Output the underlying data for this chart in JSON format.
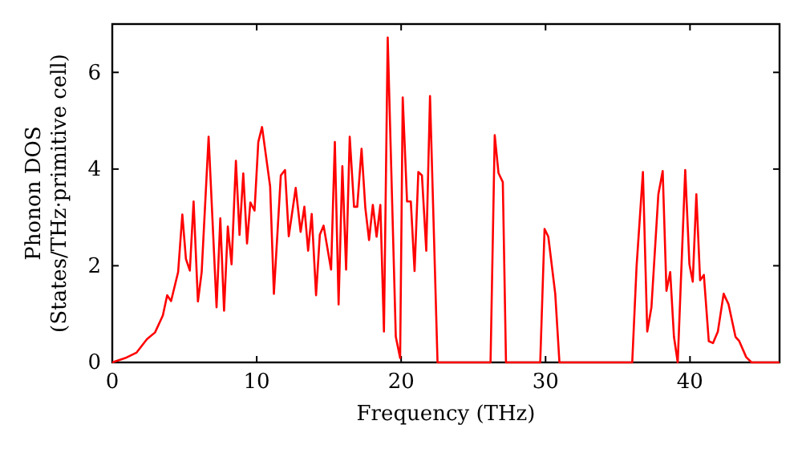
{
  "chart_data": {
    "type": "line",
    "xlabel": "Frequency (THz)",
    "ylabel": "Phonon DOS\n(States/THz·primitive cell)",
    "xlim": [
      0,
      46.2
    ],
    "ylim": [
      0,
      7
    ],
    "xticks": [
      0,
      10,
      20,
      30,
      40
    ],
    "yticks": [
      0,
      2,
      4,
      6
    ],
    "grid": false,
    "line_style": "solid",
    "marker": "none",
    "series": [
      {
        "color": "#ff0000",
        "x": [
          0,
          0.9,
          1.67,
          2.4,
          2.96,
          3.5,
          3.8,
          4.07,
          4.56,
          4.85,
          5.1,
          5.37,
          5.63,
          5.93,
          6.19,
          6.67,
          7.22,
          7.48,
          7.74,
          8.0,
          8.26,
          8.56,
          8.81,
          9.07,
          9.33,
          9.56,
          9.85,
          10.11,
          10.37,
          10.93,
          11.19,
          11.67,
          11.96,
          12.22,
          12.7,
          13.04,
          13.3,
          13.56,
          13.81,
          14.11,
          14.37,
          14.63,
          15.15,
          15.41,
          15.67,
          15.93,
          16.19,
          16.44,
          16.74,
          16.96,
          17.26,
          17.52,
          17.78,
          18.04,
          18.3,
          18.56,
          18.81,
          19.07,
          19.63,
          19.93,
          20.11,
          20.41,
          20.67,
          20.93,
          21.19,
          21.44,
          21.74,
          22.0,
          22.52,
          26.19,
          26.48,
          26.74,
          27.04,
          27.26,
          29.63,
          29.93,
          30.19,
          30.67,
          30.96,
          36.0,
          36.3,
          36.74,
          37.04,
          37.33,
          37.81,
          38.11,
          38.37,
          38.63,
          38.89,
          39.15,
          39.67,
          39.96,
          40.19,
          40.44,
          40.7,
          40.96,
          41.3,
          41.59,
          41.93,
          42.33,
          42.67,
          43.15,
          43.41,
          43.89,
          44.26,
          46.2
        ],
        "values": [
          0,
          0.09,
          0.2,
          0.48,
          0.62,
          0.97,
          1.39,
          1.27,
          1.87,
          3.06,
          2.14,
          1.9,
          3.33,
          1.26,
          1.87,
          4.67,
          1.14,
          2.98,
          1.07,
          2.81,
          2.03,
          4.17,
          2.64,
          3.91,
          2.46,
          3.31,
          3.14,
          4.56,
          4.87,
          3.64,
          1.42,
          3.87,
          3.98,
          2.61,
          3.61,
          2.7,
          3.22,
          2.31,
          3.07,
          1.39,
          2.64,
          2.83,
          1.92,
          4.56,
          1.2,
          4.06,
          1.92,
          4.67,
          3.22,
          3.22,
          4.42,
          3.2,
          2.53,
          3.26,
          2.6,
          3.26,
          0.64,
          6.72,
          0.53,
          0.09,
          5.48,
          3.33,
          3.33,
          1.89,
          3.94,
          3.87,
          2.31,
          5.51,
          0,
          0,
          4.7,
          3.92,
          3.73,
          0,
          0,
          2.76,
          2.6,
          1.42,
          0,
          0,
          1.98,
          3.94,
          0.64,
          1.14,
          3.48,
          3.96,
          1.48,
          1.87,
          0.53,
          0,
          3.98,
          2.03,
          1.67,
          3.48,
          1.7,
          1.81,
          0.44,
          0.4,
          0.64,
          1.42,
          1.2,
          0.53,
          0.44,
          0.11,
          0,
          0
        ]
      }
    ]
  }
}
